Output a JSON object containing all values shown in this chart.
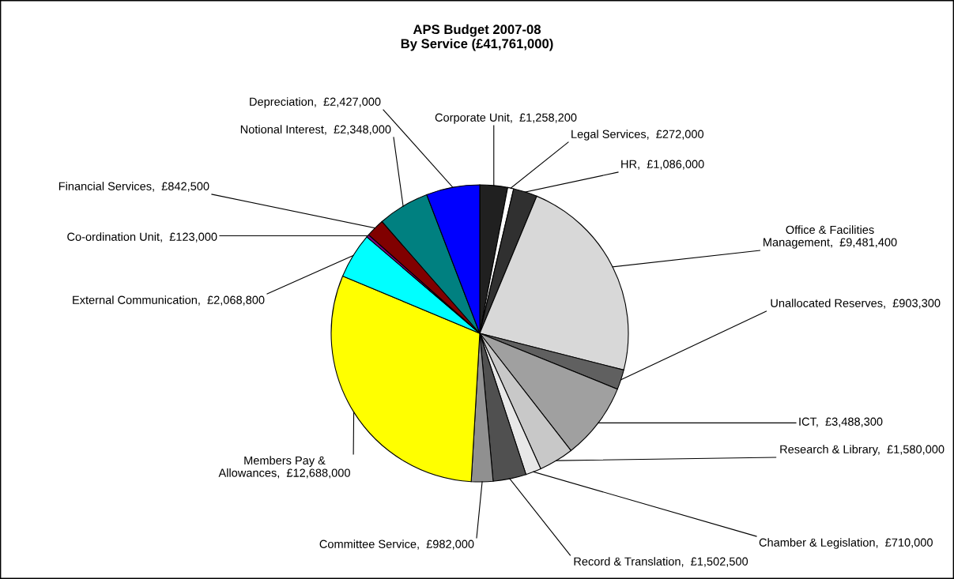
{
  "chart_data": {
    "type": "pie",
    "title": "APS Budget 2007-08\nBy Service (£41,761,000)",
    "categories": [
      "Corporate Unit",
      "Legal Services",
      "HR",
      "Office & Facilities Management",
      "Unallocated Reserves",
      "ICT",
      "Research & Library",
      "Chamber & Legislation",
      "Record & Translation",
      "Committee Service",
      "Members Pay & Allowances",
      "External Communication",
      "Co-ordination Unit",
      "Financial Services",
      "Notional Interest",
      "Depreciation"
    ],
    "values": [
      1258200,
      272000,
      1086000,
      9481400,
      903300,
      3488300,
      1580000,
      710000,
      1502500,
      982000,
      12688000,
      2068800,
      123000,
      842500,
      2348000,
      2427000
    ],
    "value_labels": [
      "£1,258,200",
      "£272,000",
      "£1,086,000",
      "£9,481,400",
      "£903,300",
      "£3,488,300",
      "£1,580,000",
      "£710,000",
      "£1,502,500",
      "£982,000",
      "£12,688,000",
      "£2,068,800",
      "£123,000",
      "£842,500",
      "£2,348,000",
      "£2,427,000"
    ],
    "colors": [
      "#202020",
      "#ffffff",
      "#303030",
      "#d8d8d8",
      "#606060",
      "#a0a0a0",
      "#c8c8c8",
      "#e8e8e8",
      "#505050",
      "#909090",
      "#ffff00",
      "#00ffff",
      "#800080",
      "#800000",
      "#008080",
      "#0000ff"
    ],
    "legend": false
  }
}
